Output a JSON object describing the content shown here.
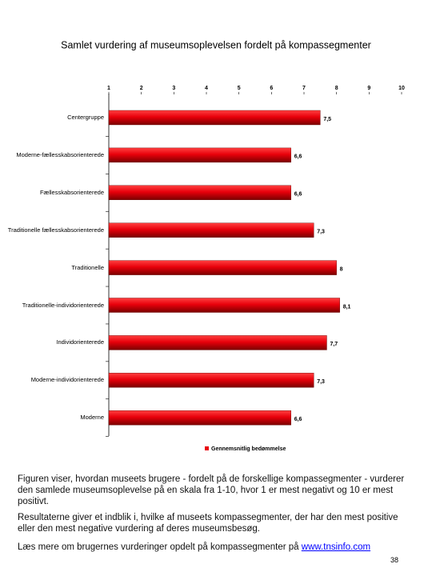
{
  "chart_data": {
    "type": "bar",
    "orientation": "horizontal",
    "title": "Samlet vurdering af museumsoplevelsen fordelt på kompassegmenter",
    "categories": [
      "Centergruppe",
      "Moderne-fællesskabsorienterede",
      "Fællesskabsorienterede",
      "Traditionelle fællesskabsorienterede",
      "Traditionelle",
      "Traditionelle-individorienterede",
      "Individorienterede",
      "Moderne-individorienterede",
      "Moderne"
    ],
    "series": [
      {
        "name": "Gennemsnitlig bedømmelse",
        "color": "#e8000b",
        "values": [
          7.5,
          6.6,
          6.6,
          7.3,
          8,
          8.1,
          7.7,
          7.3,
          6.6
        ],
        "value_labels": [
          "7,5",
          "6,6",
          "6,6",
          "7,3",
          "8",
          "8,1",
          "7,7",
          "7,3",
          "6,6"
        ]
      }
    ],
    "xlim": [
      1,
      10
    ],
    "xticks": [
      1,
      2,
      3,
      4,
      5,
      6,
      7,
      8,
      9,
      10
    ],
    "legend": "bottom"
  },
  "paragraphs": [
    "Figuren viser, hvordan museets brugere - fordelt på de forskellige kompassegmenter - vurderer den samlede museumsoplevelse på en skala fra 1-10, hvor 1 er mest negativt og 10 er mest positivt.",
    "Resultaterne giver et indblik i, hvilke af museets kompassegmenter, der har den mest positive eller den mest negative vurdering af deres museumsbesøg.",
    "Læs mere om brugernes vurderinger opdelt på kompassegmenter på "
  ],
  "link": "www.tnsinfo.com",
  "page_number": "38"
}
